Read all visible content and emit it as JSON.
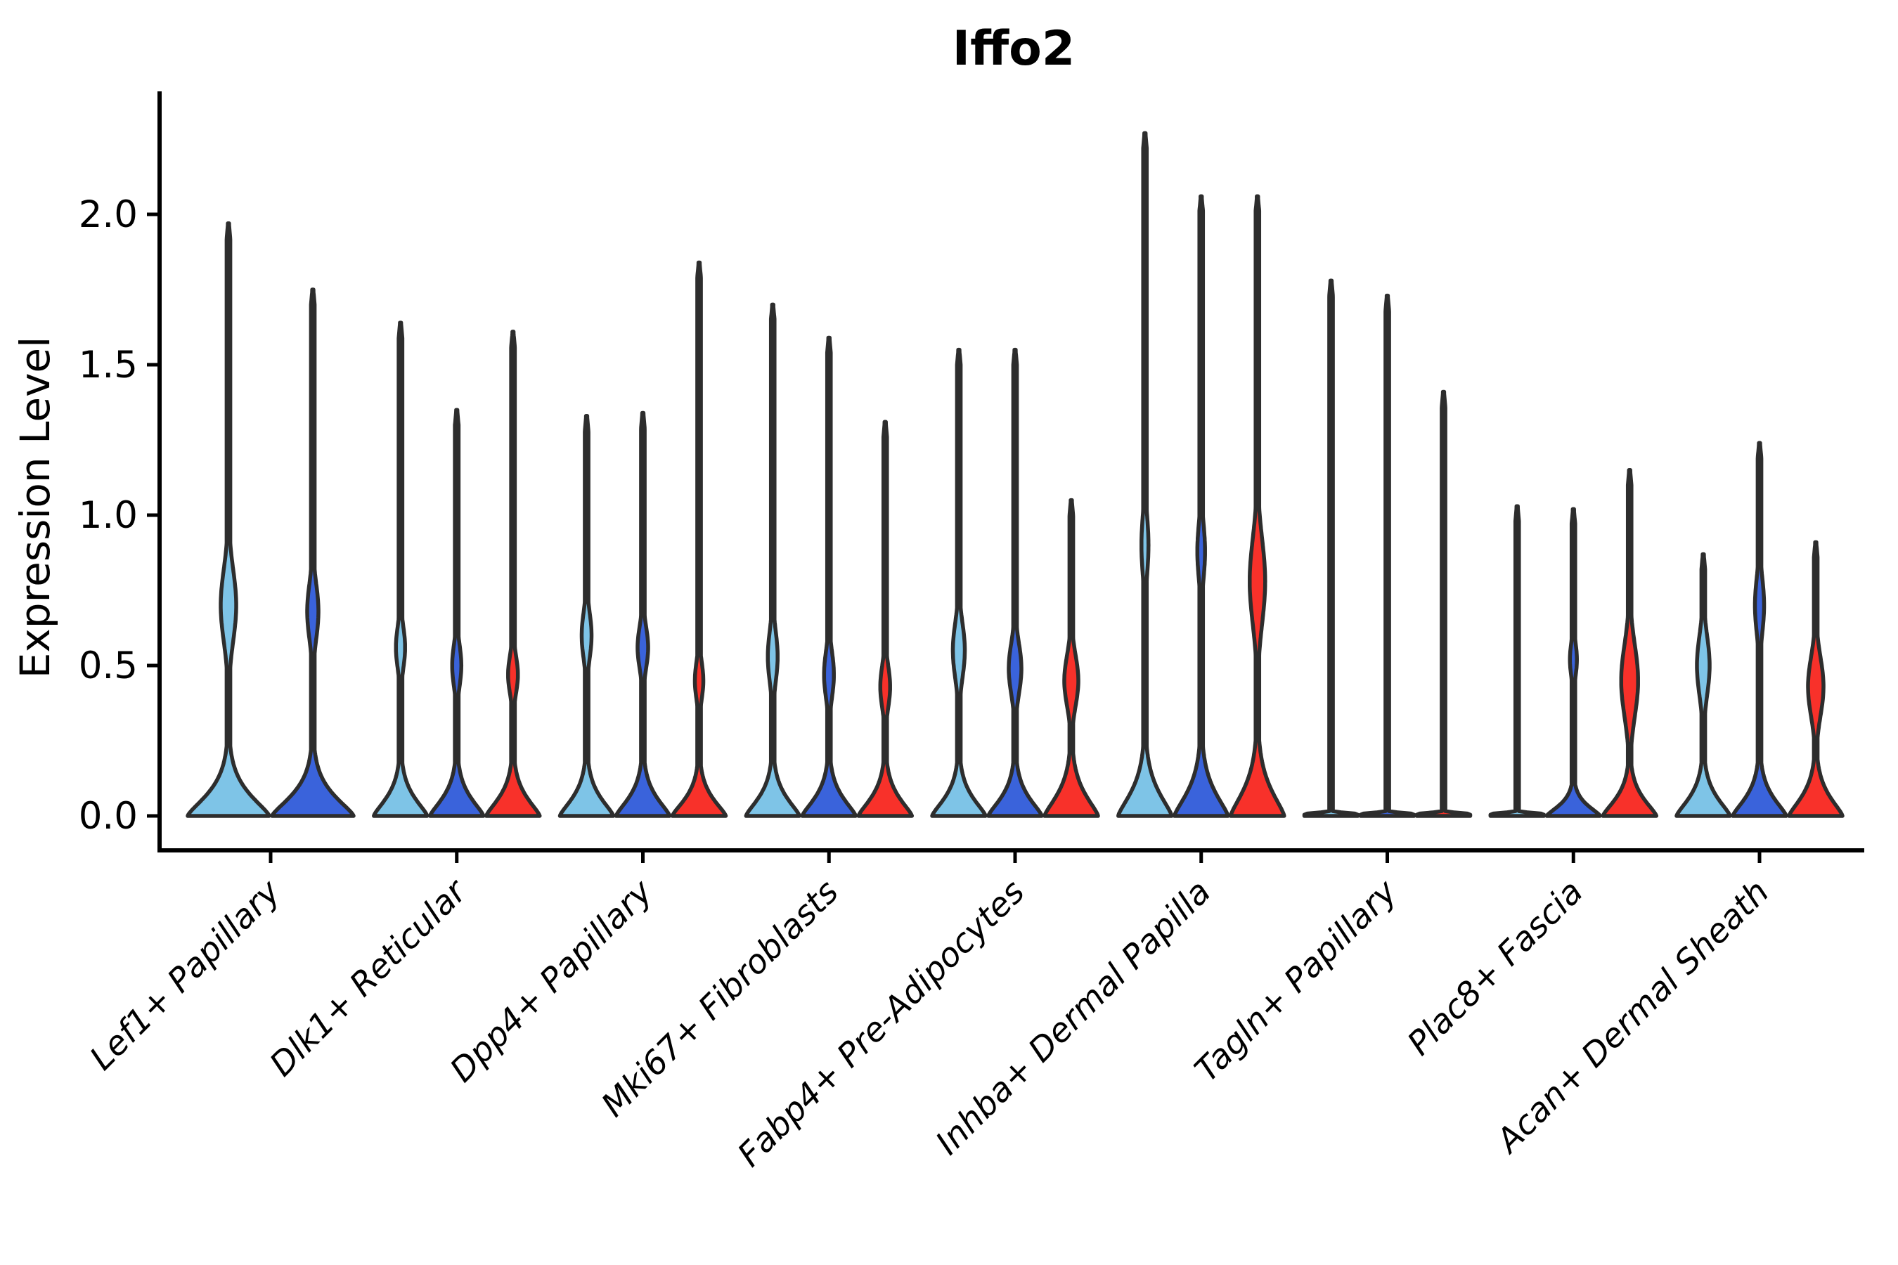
{
  "figure": {
    "title": "Iffo2",
    "ylabel": "Expression Level"
  },
  "chart_data": {
    "type": "violin",
    "title": "Iffo2",
    "xlabel": "",
    "ylabel": "Expression Level",
    "ylim": [
      -0.115,
      2.41
    ],
    "yticks": [
      {
        "value": 0.0,
        "label": "0.0"
      },
      {
        "value": 0.5,
        "label": "0.5"
      },
      {
        "value": 1.0,
        "label": "1.0"
      },
      {
        "value": 1.5,
        "label": "1.5"
      },
      {
        "value": 2.0,
        "label": "2.0"
      }
    ],
    "grid": false,
    "legend_position": "none",
    "series_palette": {
      "light_blue": "#7EC4E7",
      "dark_blue": "#3A63DB",
      "red": "#F8312A"
    },
    "outline_color": "#2D2D2D",
    "axis_color": "#000000",
    "groups": [
      {
        "label": "Lef1+ Papillary",
        "violins": [
          {
            "series": "light_blue",
            "max": 1.97,
            "base_h": 0.1,
            "bulge": {
              "center": 0.7,
              "sigma": 0.17,
              "halfwidth": 11
            }
          },
          {
            "series": "dark_blue",
            "max": 1.75,
            "base_h": 0.095,
            "bulge": {
              "center": 0.68,
              "sigma": 0.13,
              "halfwidth": 8
            }
          }
        ]
      },
      {
        "label": "Dlk1+ Reticular",
        "violins": [
          {
            "series": "light_blue",
            "max": 1.64,
            "base_h": 0.085,
            "bulge": {
              "center": 0.56,
              "sigma": 0.1,
              "halfwidth": 6.5
            }
          },
          {
            "series": "dark_blue",
            "max": 1.35,
            "base_h": 0.085,
            "bulge": {
              "center": 0.5,
              "sigma": 0.1,
              "halfwidth": 6.5
            }
          },
          {
            "series": "red",
            "max": 1.61,
            "base_h": 0.085,
            "bulge": {
              "center": 0.47,
              "sigma": 0.09,
              "halfwidth": 7
            }
          }
        ]
      },
      {
        "label": "Dpp4+ Papillary",
        "violins": [
          {
            "series": "light_blue",
            "max": 1.33,
            "base_h": 0.085,
            "bulge": {
              "center": 0.6,
              "sigma": 0.11,
              "halfwidth": 7
            }
          },
          {
            "series": "dark_blue",
            "max": 1.34,
            "base_h": 0.085,
            "bulge": {
              "center": 0.56,
              "sigma": 0.1,
              "halfwidth": 7.5
            }
          },
          {
            "series": "red",
            "max": 1.84,
            "base_h": 0.08,
            "bulge": {
              "center": 0.45,
              "sigma": 0.09,
              "halfwidth": 6
            }
          }
        ]
      },
      {
        "label": "Mki67+ Fibroblasts",
        "violins": [
          {
            "series": "light_blue",
            "max": 1.7,
            "base_h": 0.085,
            "bulge": {
              "center": 0.53,
              "sigma": 0.12,
              "halfwidth": 7
            }
          },
          {
            "series": "dark_blue",
            "max": 1.59,
            "base_h": 0.085,
            "bulge": {
              "center": 0.47,
              "sigma": 0.11,
              "halfwidth": 7
            }
          },
          {
            "series": "red",
            "max": 1.31,
            "base_h": 0.085,
            "bulge": {
              "center": 0.43,
              "sigma": 0.1,
              "halfwidth": 7
            }
          }
        ]
      },
      {
        "label": "Fabp4+ Pre-Adipocytes",
        "violins": [
          {
            "series": "light_blue",
            "max": 1.55,
            "base_h": 0.085,
            "bulge": {
              "center": 0.55,
              "sigma": 0.13,
              "halfwidth": 8.5
            }
          },
          {
            "series": "dark_blue",
            "max": 1.55,
            "base_h": 0.085,
            "bulge": {
              "center": 0.49,
              "sigma": 0.12,
              "halfwidth": 9
            }
          },
          {
            "series": "red",
            "max": 1.05,
            "base_h": 0.1,
            "bulge": {
              "center": 0.45,
              "sigma": 0.12,
              "halfwidth": 10
            }
          }
        ]
      },
      {
        "label": "Inhba+ Dermal Papilla",
        "violins": [
          {
            "series": "light_blue",
            "max": 2.27,
            "base_h": 0.11,
            "bulge": {
              "center": 0.9,
              "sigma": 0.14,
              "halfwidth": 5
            }
          },
          {
            "series": "dark_blue",
            "max": 2.06,
            "base_h": 0.11,
            "bulge": {
              "center": 0.88,
              "sigma": 0.13,
              "halfwidth": 5.5
            }
          },
          {
            "series": "red",
            "max": 2.06,
            "base_h": 0.12,
            "bulge": {
              "center": 0.78,
              "sigma": 0.2,
              "halfwidth": 11
            }
          }
        ]
      },
      {
        "label": "Tagln+ Papillary",
        "violins": [
          {
            "series": "light_blue",
            "max": 1.78,
            "flat": true,
            "bulge": null
          },
          {
            "series": "dark_blue",
            "max": 1.73,
            "flat": true,
            "bulge": null
          },
          {
            "series": "red",
            "max": 1.41,
            "flat": true,
            "bulge": null
          }
        ]
      },
      {
        "label": "Plac8+ Fascia",
        "violins": [
          {
            "series": "light_blue",
            "max": 1.03,
            "flat": true,
            "bulge": null
          },
          {
            "series": "dark_blue",
            "max": 1.02,
            "base_h": 0.05,
            "bulge": {
              "center": 0.52,
              "sigma": 0.08,
              "halfwidth": 5
            }
          },
          {
            "series": "red",
            "max": 1.15,
            "base_h": 0.08,
            "bulge": {
              "center": 0.45,
              "sigma": 0.17,
              "halfwidth": 12
            }
          }
        ]
      },
      {
        "label": "Acan+ Dermal Sheath",
        "violins": [
          {
            "series": "light_blue",
            "max": 0.87,
            "base_h": 0.085,
            "bulge": {
              "center": 0.5,
              "sigma": 0.14,
              "halfwidth": 9
            }
          },
          {
            "series": "dark_blue",
            "max": 1.24,
            "base_h": 0.085,
            "bulge": {
              "center": 0.7,
              "sigma": 0.13,
              "halfwidth": 6.5
            }
          },
          {
            "series": "red",
            "max": 0.91,
            "base_h": 0.09,
            "bulge": {
              "center": 0.43,
              "sigma": 0.14,
              "halfwidth": 11
            }
          }
        ]
      }
    ]
  }
}
